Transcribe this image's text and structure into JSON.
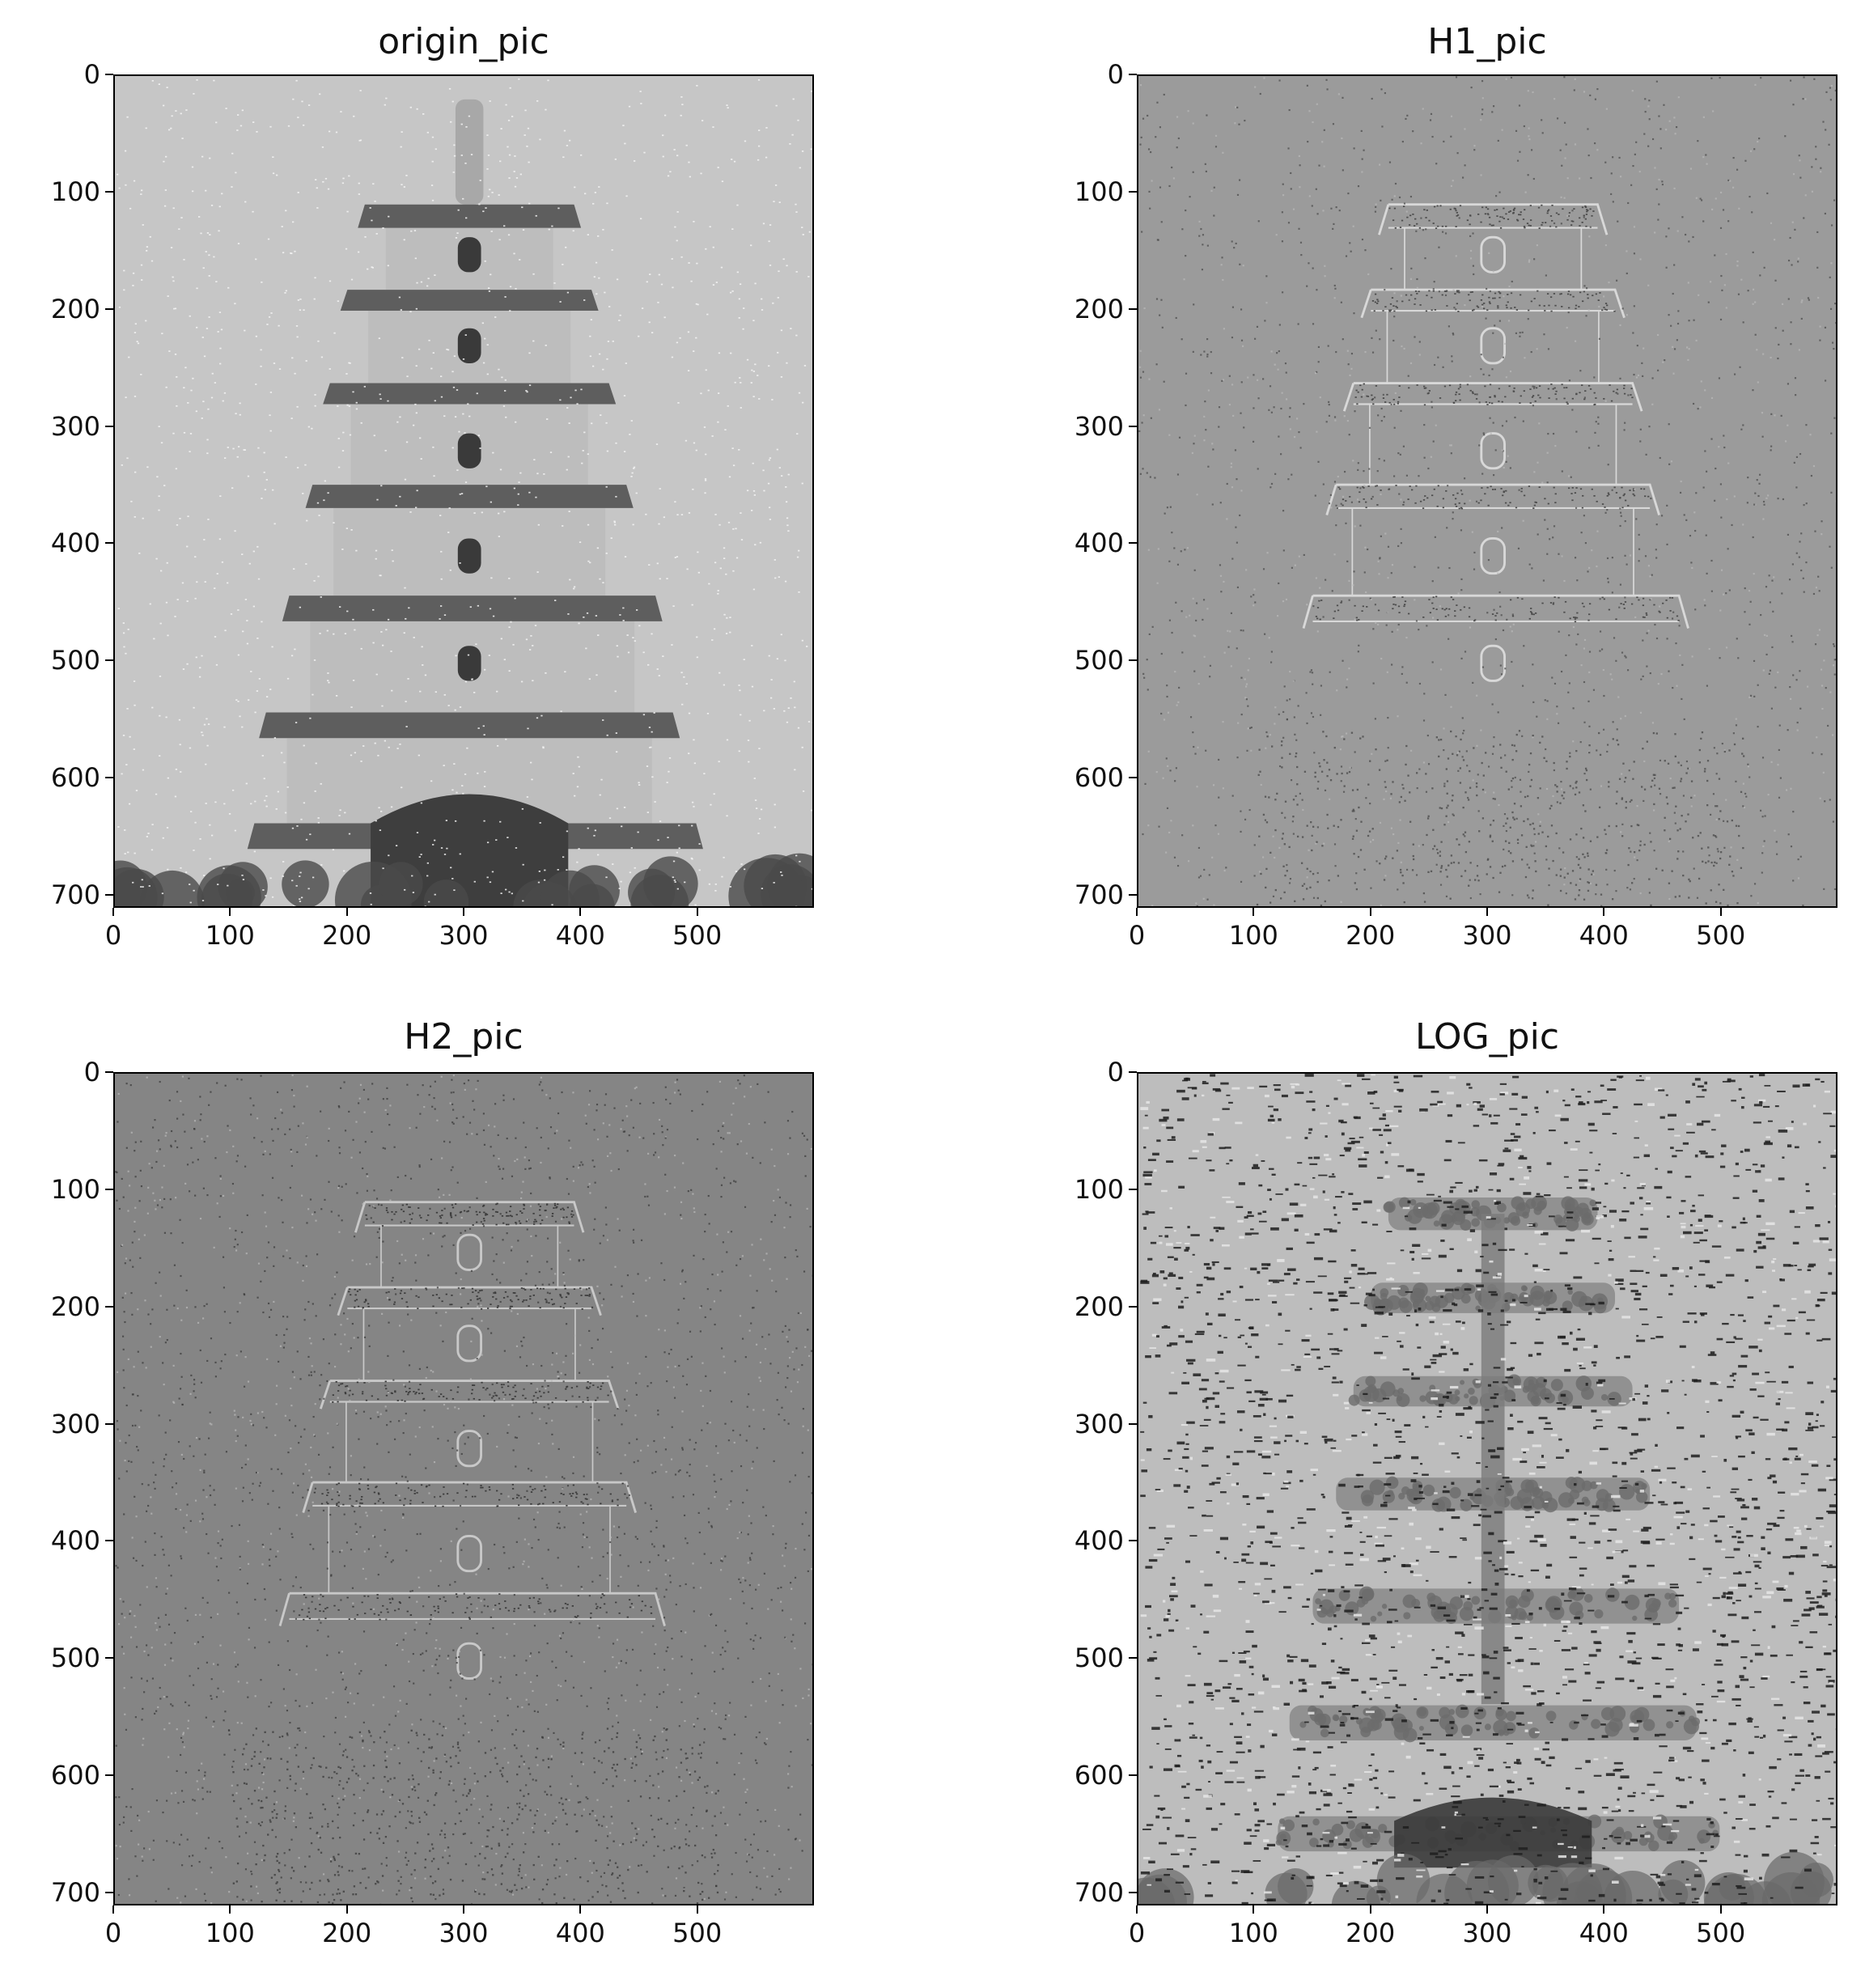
{
  "figure": {
    "panels": [
      {
        "id": "origin",
        "title": "origin_pic",
        "style": "original",
        "background": "#c6c6c6",
        "x_ticks": [
          "0",
          "100",
          "200",
          "300",
          "400",
          "500"
        ],
        "y_ticks": [
          "0",
          "100",
          "200",
          "300",
          "400",
          "500",
          "600",
          "700"
        ],
        "x_range": [
          0,
          600
        ],
        "y_range": [
          0,
          711
        ]
      },
      {
        "id": "h1",
        "title": "H1_pic",
        "style": "highpass-light",
        "background": "#9b9b9b",
        "x_ticks": [
          "0",
          "100",
          "200",
          "300",
          "400",
          "500"
        ],
        "y_ticks": [
          "0",
          "100",
          "200",
          "300",
          "400",
          "500",
          "600",
          "700"
        ],
        "x_range": [
          0,
          600
        ],
        "y_range": [
          0,
          711
        ]
      },
      {
        "id": "h2",
        "title": "H2_pic",
        "style": "highpass-dark",
        "background": "#858585",
        "x_ticks": [
          "0",
          "100",
          "200",
          "300",
          "400",
          "500"
        ],
        "y_ticks": [
          "0",
          "100",
          "200",
          "300",
          "400",
          "500",
          "600",
          "700"
        ],
        "x_range": [
          0,
          600
        ],
        "y_range": [
          0,
          711
        ]
      },
      {
        "id": "log",
        "title": "LOG_pic",
        "style": "log",
        "background": "#bdbdbd",
        "x_ticks": [
          "0",
          "100",
          "200",
          "300",
          "400",
          "500"
        ],
        "y_ticks": [
          "0",
          "100",
          "200",
          "300",
          "400",
          "500",
          "600",
          "700"
        ],
        "x_range": [
          0,
          600
        ],
        "y_range": [
          0,
          711
        ]
      }
    ]
  }
}
